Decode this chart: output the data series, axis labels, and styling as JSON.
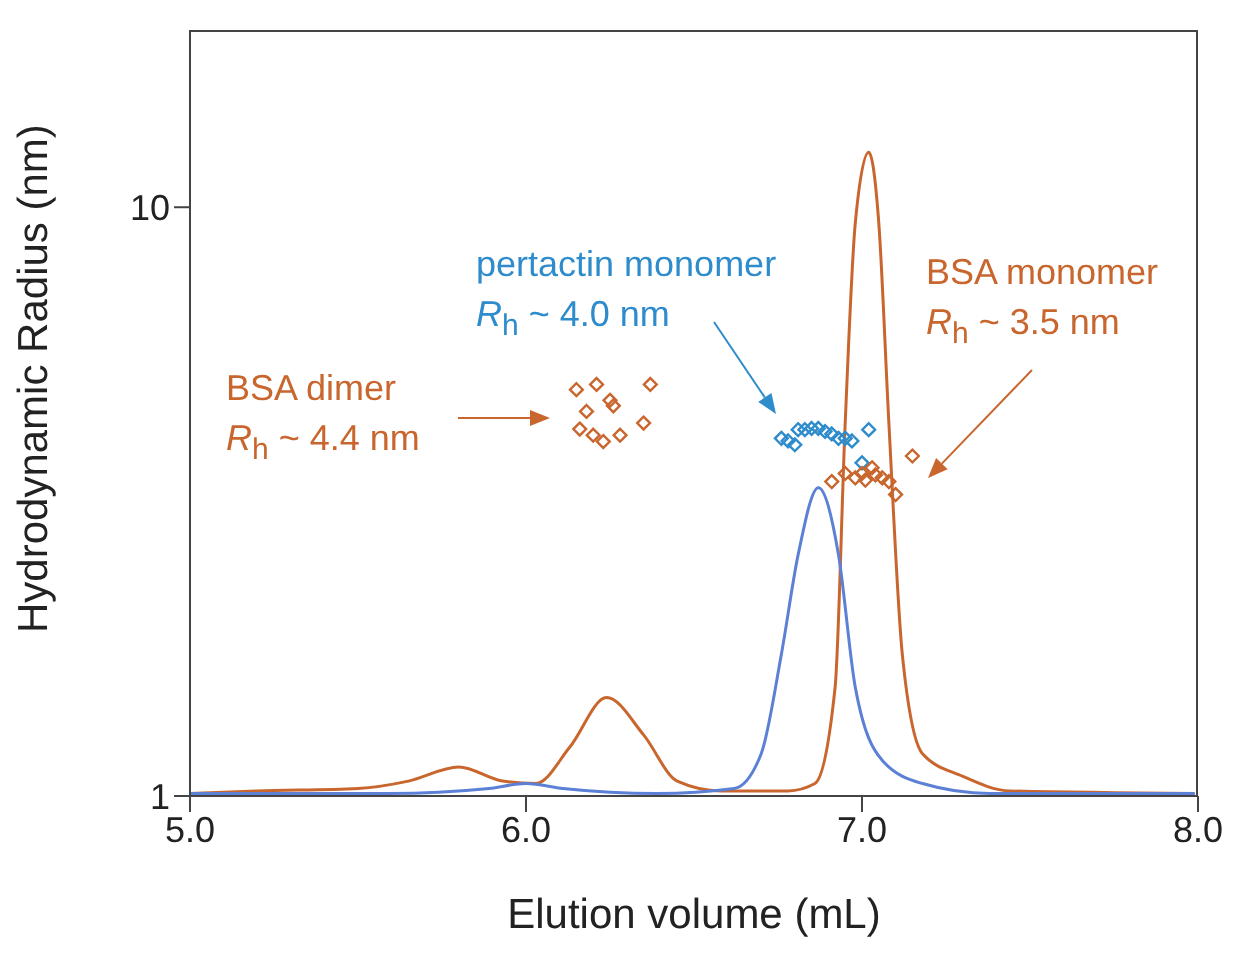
{
  "chart_data": {
    "type": "line",
    "xlabel": "Elution volume (mL)",
    "ylabel": "Hydrodynamic Radius (nm)",
    "log": "y",
    "xlim": [
      5,
      8
    ],
    "xticks": [
      {
        "value": 5,
        "label": "5.0"
      },
      {
        "value": 6,
        "label": "6.0"
      },
      {
        "value": 7,
        "label": "7.0"
      },
      {
        "value": 8,
        "label": "8.0"
      }
    ],
    "ylim": [
      1,
      20
    ],
    "yticks": [
      1,
      10
    ],
    "series": [
      {
        "marker": "none",
        "color": "#c8662e",
        "x": [
          5.0,
          5.2,
          5.5,
          5.65,
          5.8,
          5.93,
          6.03,
          6.13,
          6.24,
          6.35,
          6.45,
          6.58,
          6.78,
          6.86,
          6.92,
          6.95,
          6.98,
          7.02,
          7.05,
          7.08,
          7.12,
          7.18,
          7.3,
          7.44,
          7.99
        ],
        "values": [
          1.01,
          1.02,
          1.03,
          1.06,
          1.12,
          1.06,
          1.05,
          1.21,
          1.47,
          1.27,
          1.06,
          1.02,
          1.02,
          1.05,
          1.53,
          4.3,
          9.4,
          12.4,
          9.4,
          4.3,
          1.74,
          1.18,
          1.08,
          1.02,
          1.01
        ]
      },
      {
        "marker": "none",
        "color": "#5b80d6",
        "x": [
          5.0,
          5.59,
          5.89,
          6.0,
          6.11,
          6.39,
          6.62,
          6.7,
          6.76,
          6.81,
          6.87,
          6.93,
          6.98,
          7.06,
          7.18,
          7.38,
          7.99
        ],
        "values": [
          1.01,
          1.01,
          1.03,
          1.05,
          1.03,
          1.01,
          1.03,
          1.18,
          1.74,
          2.57,
          3.34,
          2.57,
          1.53,
          1.15,
          1.05,
          1.01,
          1.01
        ]
      },
      {
        "type": "scatter",
        "marker": "diamond",
        "color": "#c8662e",
        "x": [
          6.15,
          6.21,
          6.18,
          6.25,
          6.26,
          6.37,
          6.16,
          6.2,
          6.23,
          6.28,
          6.35
        ],
        "values": [
          4.9,
          5.0,
          4.5,
          4.7,
          4.6,
          5.0,
          4.2,
          4.1,
          4.0,
          4.1,
          4.3
        ]
      },
      {
        "type": "scatter",
        "marker": "diamond",
        "color": "#2e8ccc",
        "x": [
          6.76,
          6.78,
          6.8,
          6.81,
          6.83,
          6.85,
          6.87,
          6.89,
          6.91,
          6.93,
          6.95,
          6.97,
          7.02,
          7.0
        ],
        "values": [
          4.05,
          4.01,
          3.95,
          4.19,
          4.19,
          4.21,
          4.21,
          4.16,
          4.12,
          4.05,
          4.05,
          4.01,
          4.19,
          3.68
        ]
      },
      {
        "type": "scatter",
        "marker": "diamond",
        "color": "#c8662e",
        "x": [
          6.91,
          6.95,
          6.98,
          7.01,
          7.03,
          7.06,
          7.08,
          7.1,
          7.15,
          7.0,
          7.04
        ],
        "values": [
          3.42,
          3.53,
          3.47,
          3.44,
          3.61,
          3.47,
          3.42,
          3.25,
          3.78,
          3.53,
          3.51
        ]
      }
    ],
    "annotations": [
      "BSA dimer",
      "R$_{h}$ ~ 4.4 nm",
      "pertactin monomer",
      "R$_{h}$ ~ 4.0 nm",
      "BSA monomer",
      "R$_{h}$ ~ 3.5 nm"
    ]
  }
}
